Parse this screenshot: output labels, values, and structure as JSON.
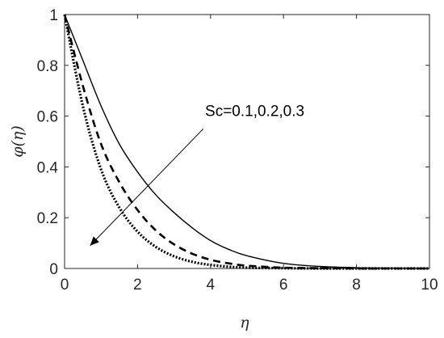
{
  "chart_data": {
    "type": "line",
    "title": "",
    "xlabel": "η",
    "ylabel": "φ(η)",
    "xlim": [
      0,
      10
    ],
    "ylim": [
      0,
      1
    ],
    "grid": false,
    "legend": "none",
    "x_ticks": [
      "0",
      "2",
      "4",
      "6",
      "8",
      "10"
    ],
    "y_ticks": [
      "0",
      "0.2",
      "0.4",
      "0.6",
      "0.8",
      "1"
    ],
    "series": [
      {
        "style": "solid",
        "color": "#000000",
        "x": [
          0,
          0.5,
          1,
          1.5,
          2,
          2.5,
          3,
          3.5,
          4,
          4.5,
          5,
          6,
          7,
          8,
          9,
          10
        ],
        "y": [
          1,
          0.82,
          0.64,
          0.49,
          0.38,
          0.29,
          0.22,
          0.16,
          0.11,
          0.075,
          0.05,
          0.02,
          0.008,
          0.003,
          0.001,
          0.0
        ]
      },
      {
        "style": "dashed",
        "color": "#000000",
        "x": [
          0,
          0.5,
          1,
          1.5,
          2,
          2.5,
          3,
          3.5,
          4,
          4.5,
          5,
          6,
          7,
          8,
          9,
          10
        ],
        "y": [
          1,
          0.72,
          0.49,
          0.34,
          0.23,
          0.15,
          0.095,
          0.058,
          0.034,
          0.02,
          0.011,
          0.003,
          0.001,
          0.0,
          0.0,
          0.0
        ]
      },
      {
        "style": "dotted",
        "color": "#000000",
        "x": [
          0,
          0.5,
          1,
          1.5,
          2,
          2.5,
          3,
          3.5,
          4,
          4.5,
          5,
          6,
          7,
          8,
          9,
          10
        ],
        "y": [
          1,
          0.64,
          0.39,
          0.24,
          0.145,
          0.085,
          0.048,
          0.026,
          0.014,
          0.007,
          0.003,
          0.001,
          0.0,
          0.0,
          0.0,
          0.0
        ]
      }
    ],
    "annotation": {
      "text": "Sc=0.1,0.2,0.3",
      "text_at": [
        3.85,
        0.6
      ],
      "arrow_from": [
        3.8,
        0.55
      ],
      "arrow_to": [
        0.7,
        0.09
      ]
    }
  }
}
